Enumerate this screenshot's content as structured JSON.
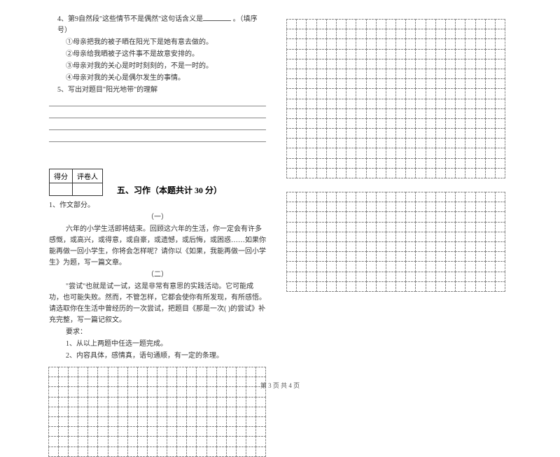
{
  "left": {
    "q4_prefix": "4、第9自然段\"这些情节不是偶然\"这句话含义是",
    "q4_suffix": " 。（填序号）",
    "q4_opts": [
      "①母亲把我的被子晒在阳光下是她有意去做的。",
      "②母亲给我晒被子这件事不是故意安排的。",
      "③母亲对我的关心是时时刻刻的，不是一时的。",
      "④母亲对我的关心是偶尔发生的事情。"
    ],
    "q5": "5、写出对题目\"阳光地带\"的理解",
    "score_header": [
      "得分",
      "评卷人"
    ],
    "section_title": "五、习作（本题共计 30 分）",
    "p1": "1、作文部分。",
    "sub1": "（一）",
    "para1": "六年的小学生活即将结束。回顾这六年的生活，你一定会有许多感慨，或高兴，或得意，或自豪，或遗憾，或后悔，或困惑……如果你能再做一回小学生，你将会怎样呢？请你以《如果，我能再做一回小学生》为题，写一篇文章。",
    "sub2": "（二）",
    "para2": "\"尝试\"也就是试一试，这是非常有意思的实践活动。它可能成功，也可能失败。然而，不管怎样，它都会使你有所发现，有所感悟。请选取你在生活中曾经历的一次尝试，把题目《那是一次(  )的尝试》补充完整，写一篇记叙文。",
    "req_label": "要求：",
    "req1": "1、从以上两题中任选一题完成。",
    "req2": "2、内容具体，感情真，语句通顺，有一定的条理。"
  },
  "grids": {
    "left_bottom": {
      "rows": 9,
      "cols": 22
    },
    "right_top": {
      "rows": 16,
      "cols": 22
    },
    "right_bottom": {
      "rows": 10,
      "cols": 22
    }
  },
  "footer": "第 3 页 共 4 页",
  "style": {
    "text_color": "#333333",
    "bg_color": "#ffffff",
    "grid_border": "#888888",
    "font_size_body": 10,
    "font_size_section": 12
  }
}
